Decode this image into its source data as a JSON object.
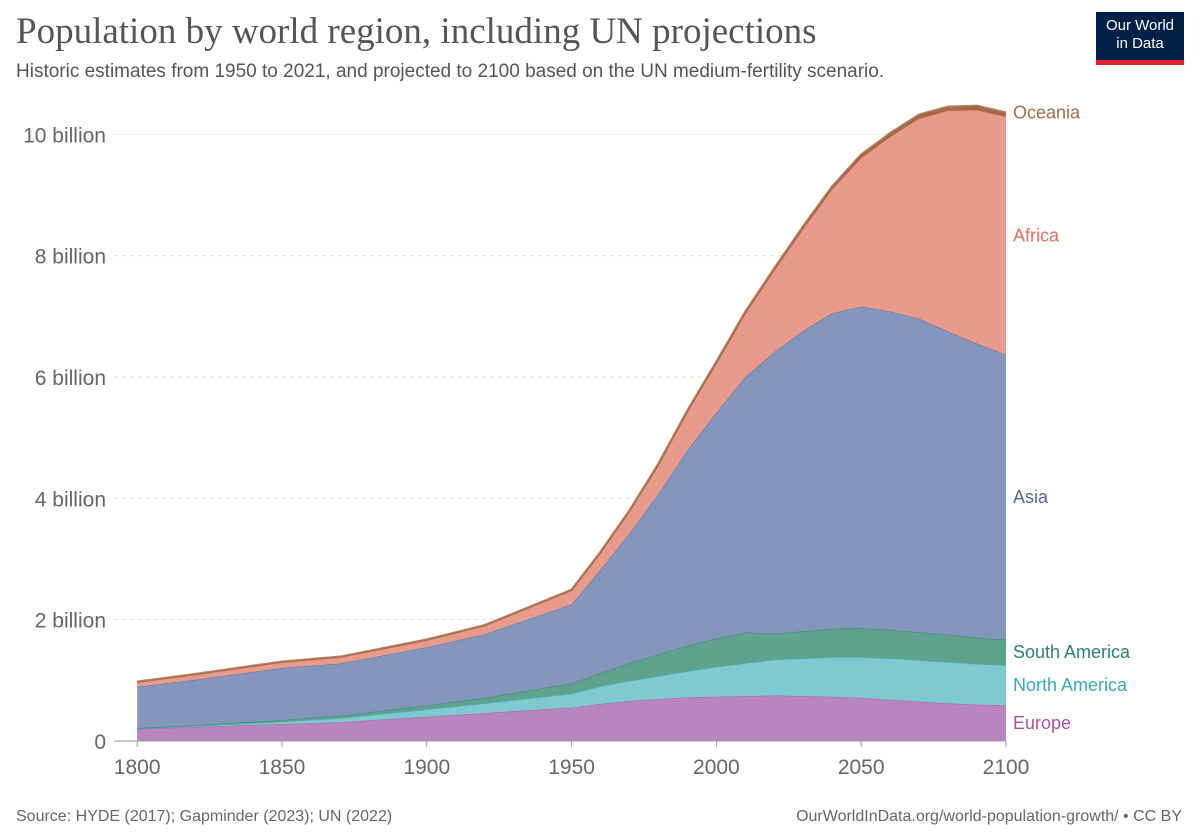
{
  "header": {
    "title": "Population by world region, including UN projections",
    "subtitle": "Historic estimates from 1950 to 2021, and projected to 2100 based on the UN medium-fertility scenario."
  },
  "logo": {
    "line1": "Our World",
    "line2": "in Data"
  },
  "footer": {
    "source": "Source: HYDE (2017); Gapminder (2023); UN (2022)",
    "url": "OurWorldInData.org/world-population-growth/ • CC BY"
  },
  "chart_data": {
    "type": "area",
    "stacked": true,
    "title": "Population by world region, including UN projections",
    "subtitle": "Historic estimates from 1950 to 2021, and projected to 2100 based on the UN medium-fertility scenario.",
    "x": [
      1800,
      1820,
      1850,
      1870,
      1900,
      1920,
      1950,
      1960,
      1970,
      1980,
      1990,
      2000,
      2010,
      2020,
      2030,
      2040,
      2050,
      2060,
      2070,
      2080,
      2090,
      2100
    ],
    "xlim": [
      1792,
      2100
    ],
    "ylim": [
      0,
      10500000000
    ],
    "x_ticks": [
      {
        "value": 1800,
        "label": "1800"
      },
      {
        "value": 1850,
        "label": "1850"
      },
      {
        "value": 1900,
        "label": "1900"
      },
      {
        "value": 1950,
        "label": "1950"
      },
      {
        "value": 2000,
        "label": "2000"
      },
      {
        "value": 2050,
        "label": "2050"
      },
      {
        "value": 2100,
        "label": "2100"
      }
    ],
    "y_ticks": [
      {
        "value": 0,
        "label": "0"
      },
      {
        "value": 2000000000,
        "label": "2 billion"
      },
      {
        "value": 4000000000,
        "label": "4 billion"
      },
      {
        "value": 6000000000,
        "label": "6 billion"
      },
      {
        "value": 8000000000,
        "label": "8 billion"
      },
      {
        "value": 10000000000,
        "label": "10 billion"
      }
    ],
    "grid": "horizontal-dashed",
    "legend": "labels at right end of each series",
    "series": [
      {
        "name": "Europe",
        "color": "#a2559c",
        "fill": "#b885c0",
        "values": [
          0.2,
          0.23,
          0.28,
          0.31,
          0.4,
          0.46,
          0.55,
          0.61,
          0.66,
          0.69,
          0.72,
          0.73,
          0.74,
          0.75,
          0.74,
          0.73,
          0.71,
          0.68,
          0.65,
          0.62,
          0.6,
          0.59
        ]
      },
      {
        "name": "North America",
        "color": "#38aaba",
        "fill": "#7fc9d0",
        "values": [
          0.005,
          0.015,
          0.035,
          0.065,
          0.12,
          0.16,
          0.23,
          0.29,
          0.33,
          0.38,
          0.43,
          0.49,
          0.54,
          0.59,
          0.62,
          0.65,
          0.67,
          0.68,
          0.68,
          0.68,
          0.67,
          0.66
        ]
      },
      {
        "name": "South America",
        "color": "#2c8465",
        "fill": "#5fa38f",
        "values": [
          0.01,
          0.015,
          0.03,
          0.04,
          0.065,
          0.09,
          0.17,
          0.22,
          0.29,
          0.36,
          0.42,
          0.47,
          0.51,
          0.43,
          0.45,
          0.47,
          0.48,
          0.47,
          0.46,
          0.45,
          0.43,
          0.42
        ]
      },
      {
        "name": "Asia",
        "color": "#4c6a9c",
        "fill": "#8496bb",
        "values": [
          0.68,
          0.75,
          0.86,
          0.86,
          0.96,
          1.05,
          1.3,
          1.7,
          2.14,
          2.64,
          3.22,
          3.72,
          4.21,
          4.64,
          4.95,
          5.2,
          5.3,
          5.25,
          5.17,
          5.0,
          4.85,
          4.7
        ]
      },
      {
        "name": "Africa",
        "color": "#e56e5a",
        "fill": "#e89a8b",
        "values": [
          0.08,
          0.09,
          0.1,
          0.11,
          0.12,
          0.14,
          0.23,
          0.28,
          0.36,
          0.48,
          0.63,
          0.81,
          1.04,
          1.34,
          1.68,
          2.04,
          2.45,
          2.88,
          3.3,
          3.64,
          3.85,
          3.92
        ]
      },
      {
        "name": "Oceania",
        "color": "#a06c47",
        "fill": "#a06c47",
        "values": [
          0.002,
          0.002,
          0.002,
          0.003,
          0.006,
          0.009,
          0.013,
          0.016,
          0.02,
          0.023,
          0.027,
          0.031,
          0.037,
          0.043,
          0.048,
          0.052,
          0.057,
          0.06,
          0.064,
          0.066,
          0.068,
          0.069
        ]
      }
    ],
    "value_unit_multiplier": 1000000000
  }
}
